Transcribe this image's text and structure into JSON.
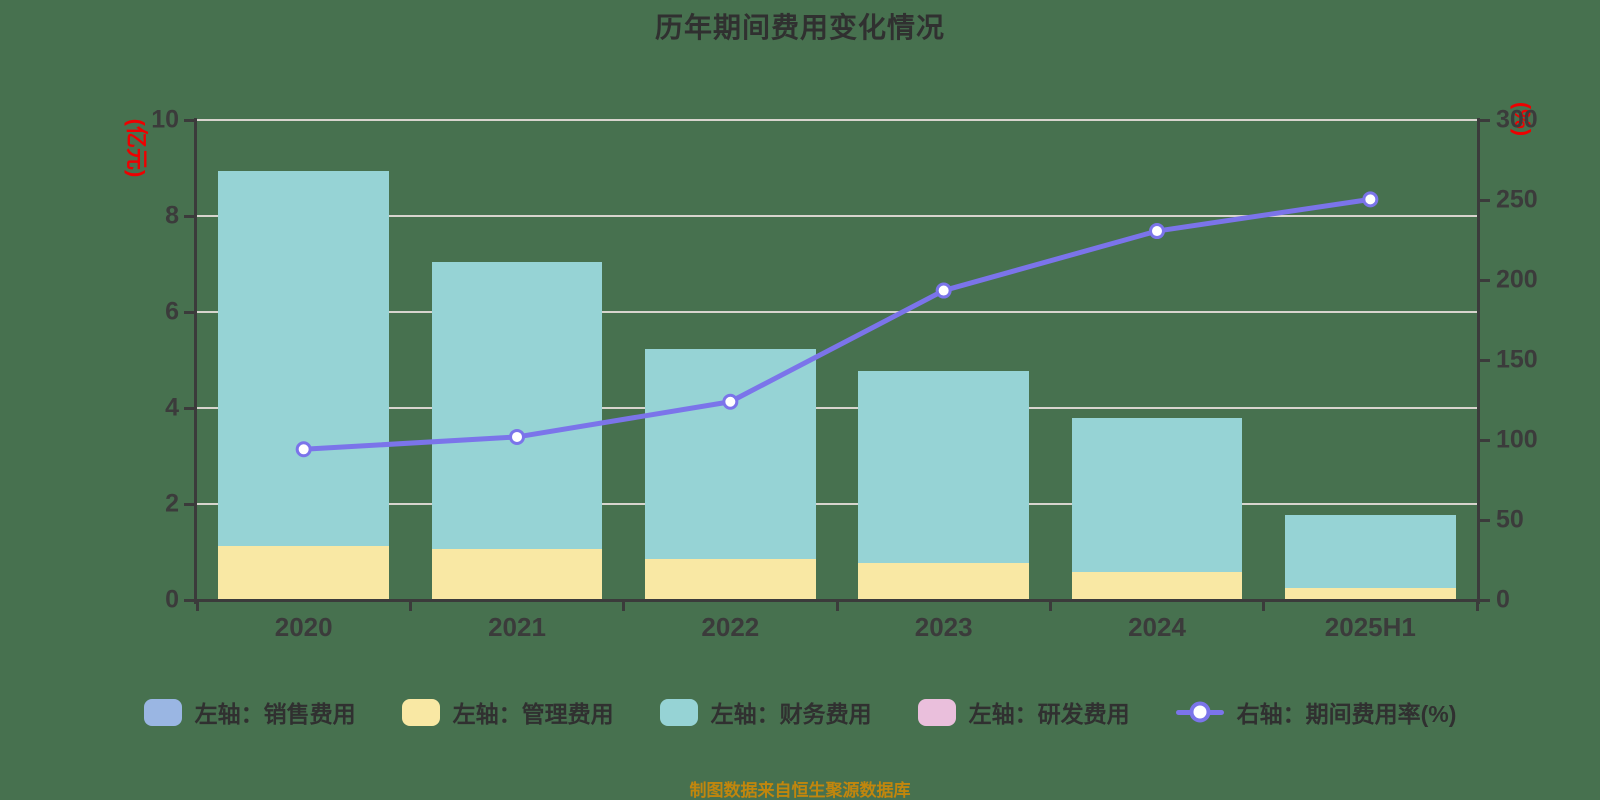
{
  "title": "历年期间费用变化情况",
  "source_note": "制图数据来自恒生聚源数据库",
  "colors": {
    "background": "#47714f",
    "text": "#303030",
    "axis": "#3b3b3b",
    "grid": "#d8d4ce",
    "unit_label": "#ee0000",
    "source": "#c1860d",
    "marker_fill": "#ffffff"
  },
  "left_axis": {
    "unit": "(亿元)",
    "ticks": [
      0,
      2,
      4,
      6,
      8,
      10
    ]
  },
  "right_axis": {
    "unit": "(%)",
    "ticks": [
      0,
      50,
      100,
      150,
      200,
      250,
      300
    ]
  },
  "legend": [
    {
      "label": "左轴：销售费用",
      "color": "#9ab6e3",
      "type": "bar"
    },
    {
      "label": "左轴：管理费用",
      "color": "#f9e8a4",
      "type": "bar"
    },
    {
      "label": "左轴：财务费用",
      "color": "#96d3d5",
      "type": "bar"
    },
    {
      "label": "左轴：研发费用",
      "color": "#eabfdc",
      "type": "bar"
    },
    {
      "label": "右轴：期间费用率(%)",
      "color": "#7b74ea",
      "type": "line"
    }
  ],
  "chart_data": {
    "type": "bar",
    "subtype": "stacked-bars-with-line",
    "title": "历年期间费用变化情况",
    "categories": [
      "2020",
      "2021",
      "2022",
      "2023",
      "2024",
      "2025H1"
    ],
    "series": [
      {
        "name": "左轴：销售费用",
        "type": "bar",
        "axis": "left",
        "color": "#9ab6e3",
        "values": [
          0,
          0,
          0,
          0,
          0,
          0
        ]
      },
      {
        "name": "左轴：管理费用",
        "type": "bar",
        "axis": "left",
        "color": "#f9e8a4",
        "values": [
          1.12,
          1.06,
          0.86,
          0.77,
          0.59,
          0.25
        ]
      },
      {
        "name": "左轴：财务费用",
        "type": "bar",
        "axis": "left",
        "color": "#96d3d5",
        "values": [
          7.81,
          5.98,
          4.36,
          4.01,
          3.2,
          1.53
        ]
      },
      {
        "name": "左轴：研发费用",
        "type": "bar",
        "axis": "left",
        "color": "#eabfdc",
        "values": [
          0,
          0,
          0,
          0,
          0,
          0
        ]
      },
      {
        "name": "右轴：期间费用率(%)",
        "type": "line",
        "axis": "right",
        "color": "#7b74ea",
        "values": [
          94.2,
          101.9,
          123.9,
          193.4,
          230.6,
          250.4
        ]
      }
    ],
    "ylabel_left": "(亿元)",
    "ylabel_right": "(%)",
    "ylim_left": [
      0,
      10
    ],
    "ylim_right": [
      0,
      300
    ],
    "grid": true,
    "stack": true,
    "legend_position": "bottom"
  }
}
